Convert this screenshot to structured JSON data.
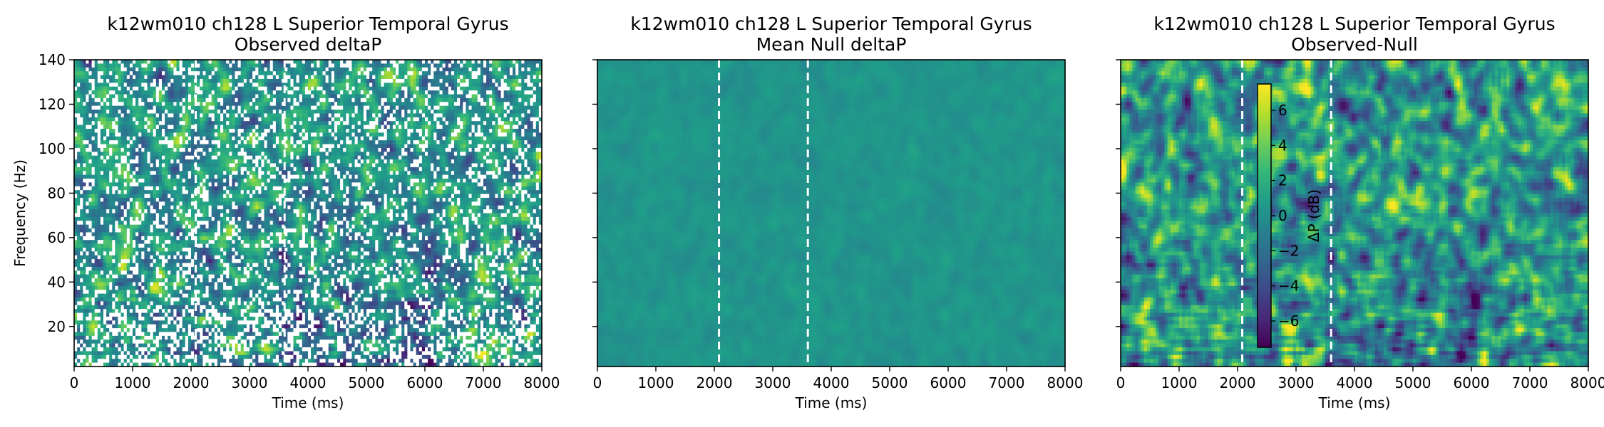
{
  "chart_data": [
    {
      "type": "heatmap",
      "title_line1": "k12wm010 ch128 L Superior Temporal Gyrus",
      "title_line2": "Observed deltaP",
      "xlabel": "Time (ms)",
      "ylabel": "Frequency (Hz)",
      "xlim": [
        0,
        8000
      ],
      "ylim": [
        2,
        140
      ],
      "xticks": [
        0,
        1000,
        2000,
        3000,
        4000,
        5000,
        6000,
        7000,
        8000
      ],
      "yticks": [
        20,
        40,
        60,
        80,
        100,
        120,
        140
      ],
      "show_ytick_labels": true,
      "event_lines_ms": [
        2080,
        3600
      ],
      "colormap": "viridis",
      "masked_cells_white": true,
      "variant": "observed"
    },
    {
      "type": "heatmap",
      "title_line1": "k12wm010 ch128 L Superior Temporal Gyrus",
      "title_line2": "Mean Null deltaP",
      "xlabel": "Time (ms)",
      "ylabel": "",
      "xlim": [
        0,
        8000
      ],
      "ylim": [
        2,
        140
      ],
      "xticks": [
        0,
        1000,
        2000,
        3000,
        4000,
        5000,
        6000,
        7000,
        8000
      ],
      "yticks": [
        20,
        40,
        60,
        80,
        100,
        120,
        140
      ],
      "show_ytick_labels": false,
      "event_lines_ms": [
        2080,
        3600
      ],
      "colormap": "viridis",
      "masked_cells_white": false,
      "variant": "null"
    },
    {
      "type": "heatmap",
      "title_line1": "k12wm010 ch128 L Superior Temporal Gyrus",
      "title_line2": "Observed-Null",
      "xlabel": "Time (ms)",
      "ylabel": "",
      "xlim": [
        0,
        8000
      ],
      "ylim": [
        2,
        140
      ],
      "xticks": [
        0,
        1000,
        2000,
        3000,
        4000,
        5000,
        6000,
        7000,
        8000
      ],
      "yticks": [
        20,
        40,
        60,
        80,
        100,
        120,
        140
      ],
      "show_ytick_labels": false,
      "event_lines_ms": [
        2080,
        3600
      ],
      "colormap": "viridis",
      "masked_cells_white": false,
      "variant": "diff",
      "colorbar": {
        "label": "ΔP (dB)",
        "range": [
          -7.5,
          7.5
        ],
        "ticks": [
          6,
          4,
          2,
          0,
          -2,
          -4,
          -6
        ],
        "tick_labels": [
          "6",
          "4",
          "2",
          "0",
          "−2",
          "−4",
          "−6"
        ]
      }
    }
  ]
}
